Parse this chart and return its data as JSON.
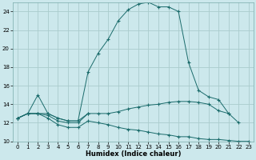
{
  "xlabel": "Humidex (Indice chaleur)",
  "xlim": [
    -0.5,
    23.5
  ],
  "ylim": [
    10,
    25
  ],
  "yticks": [
    10,
    12,
    14,
    16,
    18,
    20,
    22,
    24
  ],
  "xticks": [
    0,
    1,
    2,
    3,
    4,
    5,
    6,
    7,
    8,
    9,
    10,
    11,
    12,
    13,
    14,
    15,
    16,
    17,
    18,
    19,
    20,
    21,
    22,
    23
  ],
  "bg_color": "#cce8ec",
  "grid_color": "#aacccc",
  "line_color": "#1a6b6b",
  "series": [
    {
      "x": [
        0,
        1,
        2,
        3,
        4,
        5,
        6,
        7,
        8,
        9,
        10,
        11,
        12,
        13,
        14,
        15,
        16,
        17,
        18,
        19,
        20,
        21,
        22
      ],
      "y": [
        12.5,
        13.0,
        15.0,
        13.0,
        12.5,
        12.2,
        12.2,
        17.5,
        19.5,
        21.0,
        23.0,
        24.2,
        24.8,
        25.0,
        24.5,
        24.5,
        24.0,
        18.5,
        15.5,
        14.8,
        14.5,
        13.0,
        12.0
      ]
    },
    {
      "x": [
        0,
        1,
        2,
        3,
        4,
        5,
        6,
        7,
        8,
        9,
        10,
        11,
        12,
        13,
        14,
        15,
        16,
        17,
        18,
        19,
        20,
        21
      ],
      "y": [
        12.5,
        13.0,
        13.0,
        13.0,
        12.5,
        12.2,
        12.2,
        13.0,
        13.0,
        13.0,
        13.2,
        13.5,
        13.7,
        13.9,
        14.0,
        14.2,
        14.3,
        14.3,
        14.2,
        14.0,
        13.3,
        13.0
      ]
    },
    {
      "x": [
        0,
        1,
        2,
        3,
        4,
        5,
        6,
        7
      ],
      "y": [
        12.5,
        13.0,
        13.0,
        12.8,
        12.2,
        12.0,
        12.0,
        13.0
      ]
    },
    {
      "x": [
        0,
        1,
        2,
        3,
        4,
        5,
        6,
        7,
        8,
        9,
        10,
        11,
        12,
        13,
        14,
        15,
        16,
        17,
        18,
        19,
        20,
        21,
        22,
        23
      ],
      "y": [
        12.5,
        13.0,
        13.0,
        12.5,
        11.8,
        11.5,
        11.5,
        12.2,
        12.0,
        11.8,
        11.5,
        11.3,
        11.2,
        11.0,
        10.8,
        10.7,
        10.5,
        10.5,
        10.3,
        10.2,
        10.2,
        10.1,
        10.0,
        10.0
      ]
    }
  ]
}
